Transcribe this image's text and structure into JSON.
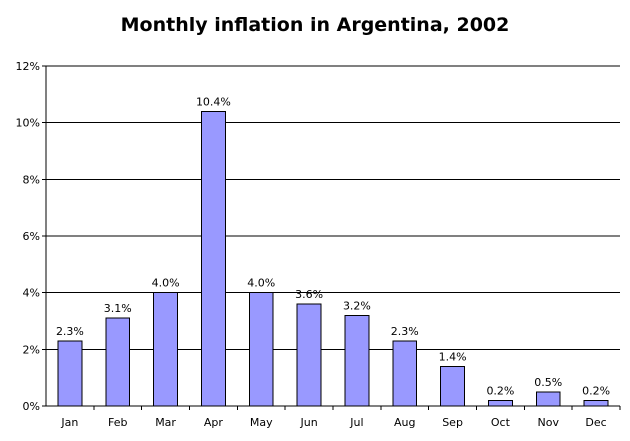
{
  "chart_data": {
    "type": "bar",
    "title": "Monthly inflation in Argentina, 2002",
    "xlabel": "",
    "ylabel": "",
    "categories": [
      "Jan",
      "Feb",
      "Mar",
      "Apr",
      "May",
      "Jun",
      "Jul",
      "Aug",
      "Sep",
      "Oct",
      "Nov",
      "Dec"
    ],
    "values": [
      2.3,
      3.1,
      4.0,
      10.4,
      4.0,
      3.6,
      3.2,
      2.3,
      1.4,
      0.2,
      0.5,
      0.2
    ],
    "data_labels": [
      "2.3%",
      "3.1%",
      "4.0%",
      "10.4%",
      "4.0%",
      "3.6%",
      "3.2%",
      "2.3%",
      "1.4%",
      "0.2%",
      "0.5%",
      "0.2%"
    ],
    "ylim": [
      0,
      12
    ],
    "yticks": [
      0,
      2,
      4,
      6,
      8,
      10,
      12
    ],
    "ytick_labels": [
      "0%",
      "2%",
      "4%",
      "6%",
      "8%",
      "10%",
      "12%"
    ],
    "grid": true,
    "legend": "none",
    "colors": {
      "bar_fill": "#9999ff",
      "bar_stroke": "#000000",
      "grid": "#000000",
      "axis": "#000000"
    }
  }
}
